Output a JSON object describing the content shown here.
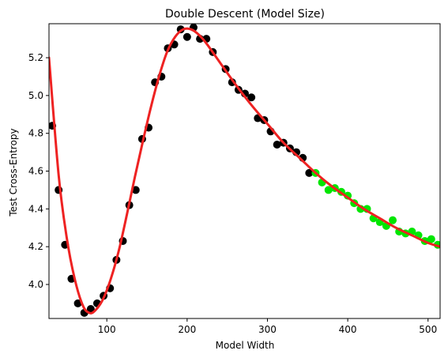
{
  "chart_data": {
    "type": "scatter",
    "title": "Double Descent (Model Size)",
    "xlabel": "Model Width",
    "ylabel": "Test Cross-Entropy",
    "xlim": [
      28,
      515
    ],
    "ylim": [
      3.82,
      5.38
    ],
    "xticks": [
      100,
      200,
      300,
      400,
      500
    ],
    "yticks": [
      4.0,
      4.2,
      4.4,
      4.6,
      4.8,
      5.0,
      5.2
    ],
    "xtick_labels": [
      "100",
      "200",
      "300",
      "400",
      "500"
    ],
    "ytick_labels": [
      "4.0",
      "4.2",
      "4.4",
      "4.6",
      "4.8",
      "5.0",
      "5.2"
    ],
    "grid": false,
    "legend": null,
    "series": [
      {
        "kind": "scatter",
        "color": "#000000",
        "points": [
          [
            32,
            4.84
          ],
          [
            40,
            4.5
          ],
          [
            48,
            4.21
          ],
          [
            56,
            4.03
          ],
          [
            64,
            3.9
          ],
          [
            72,
            3.85
          ],
          [
            80,
            3.87
          ],
          [
            88,
            3.9
          ],
          [
            96,
            3.94
          ],
          [
            104,
            3.98
          ],
          [
            112,
            4.13
          ],
          [
            120,
            4.23
          ],
          [
            128,
            4.42
          ],
          [
            136,
            4.5
          ],
          [
            144,
            4.77
          ],
          [
            152,
            4.83
          ],
          [
            160,
            5.07
          ],
          [
            168,
            5.1
          ],
          [
            176,
            5.25
          ],
          [
            184,
            5.27
          ],
          [
            192,
            5.35
          ],
          [
            200,
            5.31
          ],
          [
            208,
            5.36
          ],
          [
            216,
            5.3
          ],
          [
            224,
            5.3
          ],
          [
            232,
            5.23
          ],
          [
            248,
            5.14
          ],
          [
            256,
            5.07
          ],
          [
            264,
            5.03
          ],
          [
            272,
            5.01
          ],
          [
            280,
            4.99
          ],
          [
            288,
            4.88
          ],
          [
            296,
            4.87
          ],
          [
            304,
            4.81
          ],
          [
            312,
            4.74
          ],
          [
            320,
            4.75
          ],
          [
            328,
            4.72
          ],
          [
            336,
            4.7
          ],
          [
            344,
            4.67
          ],
          [
            352,
            4.59
          ]
        ]
      },
      {
        "kind": "scatter",
        "color": "#00e600",
        "points": [
          [
            360,
            4.59
          ],
          [
            368,
            4.54
          ],
          [
            376,
            4.5
          ],
          [
            384,
            4.51
          ],
          [
            392,
            4.49
          ],
          [
            400,
            4.47
          ],
          [
            408,
            4.43
          ],
          [
            416,
            4.4
          ],
          [
            424,
            4.4
          ],
          [
            432,
            4.35
          ],
          [
            440,
            4.33
          ],
          [
            448,
            4.31
          ],
          [
            456,
            4.34
          ],
          [
            464,
            4.28
          ],
          [
            472,
            4.27
          ],
          [
            480,
            4.28
          ],
          [
            488,
            4.26
          ],
          [
            496,
            4.23
          ],
          [
            504,
            4.24
          ],
          [
            512,
            4.21
          ]
        ]
      },
      {
        "kind": "line",
        "color": "#ee2222",
        "points": [
          [
            28,
            5.2
          ],
          [
            40,
            4.58
          ],
          [
            50,
            4.25
          ],
          [
            60,
            4.03
          ],
          [
            70,
            3.89
          ],
          [
            78,
            3.85
          ],
          [
            85,
            3.86
          ],
          [
            95,
            3.92
          ],
          [
            105,
            4.03
          ],
          [
            115,
            4.18
          ],
          [
            125,
            4.37
          ],
          [
            135,
            4.57
          ],
          [
            145,
            4.76
          ],
          [
            155,
            4.94
          ],
          [
            165,
            5.1
          ],
          [
            175,
            5.23
          ],
          [
            185,
            5.31
          ],
          [
            195,
            5.35
          ],
          [
            205,
            5.35
          ],
          [
            215,
            5.32
          ],
          [
            225,
            5.27
          ],
          [
            240,
            5.18
          ],
          [
            260,
            5.06
          ],
          [
            280,
            4.95
          ],
          [
            300,
            4.85
          ],
          [
            320,
            4.75
          ],
          [
            340,
            4.67
          ],
          [
            360,
            4.59
          ],
          [
            380,
            4.52
          ],
          [
            400,
            4.46
          ],
          [
            420,
            4.4
          ],
          [
            440,
            4.35
          ],
          [
            460,
            4.3
          ],
          [
            480,
            4.26
          ],
          [
            500,
            4.22
          ],
          [
            515,
            4.2
          ]
        ]
      }
    ]
  }
}
